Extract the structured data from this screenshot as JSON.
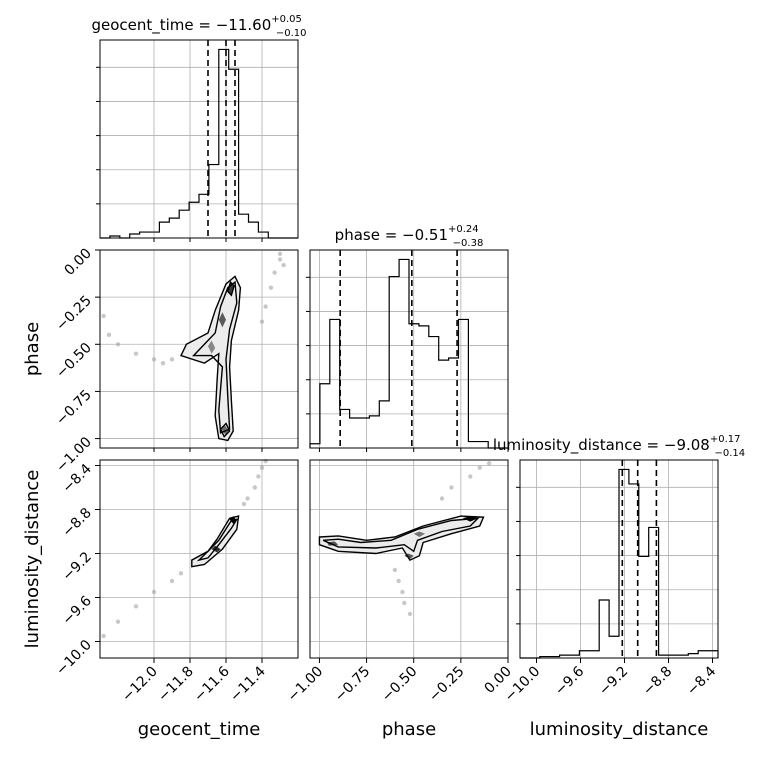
{
  "chart_data": {
    "type": "corner",
    "parameters": [
      "geocent_time",
      "phase",
      "luminosity_distance"
    ],
    "marginals": [
      {
        "param": "geocent_time",
        "title_text": "geocent_time = −11.60",
        "sup": "+0.05",
        "sub": "−0.10",
        "range": [
          -12.3,
          -11.2
        ],
        "quantiles": [
          -11.7,
          -11.6,
          -11.55
        ],
        "bin_edges": [
          -12.3,
          -12.245,
          -12.19,
          -12.135,
          -12.08,
          -12.025,
          -11.97,
          -11.915,
          -11.86,
          -11.805,
          -11.75,
          -11.695,
          -11.64,
          -11.585,
          -11.53,
          -11.475,
          -11.42,
          -11.365,
          -11.31,
          -11.255,
          -11.2
        ],
        "counts": [
          0,
          1,
          0,
          2,
          3,
          3,
          8,
          10,
          14,
          18,
          22,
          37,
          95,
          85,
          12,
          8,
          3,
          0,
          0,
          0
        ]
      },
      {
        "param": "phase",
        "title_text": "phase = −0.51",
        "sup": "+0.24",
        "sub": "−0.38",
        "range": [
          -1.05,
          0.0
        ],
        "quantiles": [
          -0.89,
          -0.51,
          -0.27
        ],
        "bin_edges": [
          -1.05,
          -0.9975,
          -0.945,
          -0.8925,
          -0.84,
          -0.7875,
          -0.735,
          -0.6825,
          -0.63,
          -0.5775,
          -0.525,
          -0.4725,
          -0.42,
          -0.3675,
          -0.315,
          -0.2625,
          -0.21,
          -0.1575,
          -0.105,
          -0.0525,
          0.0
        ],
        "counts": [
          2,
          30,
          60,
          18,
          14,
          14,
          15,
          22,
          80,
          88,
          58,
          57,
          52,
          41,
          42,
          60,
          3,
          3,
          0,
          0
        ]
      },
      {
        "param": "luminosity_distance",
        "title_text": "luminosity_distance = −9.08",
        "sup": "+0.17",
        "sub": "−0.14",
        "range": [
          -10.15,
          -8.35
        ],
        "quantiles": [
          -9.22,
          -9.08,
          -8.91
        ],
        "bin_edges": [
          -10.15,
          -10.06,
          -9.97,
          -9.88,
          -9.79,
          -9.7,
          -9.61,
          -9.52,
          -9.43,
          -9.34,
          -9.25,
          -9.16,
          -9.07,
          -8.98,
          -8.89,
          -8.8,
          -8.71,
          -8.62,
          -8.53,
          -8.44,
          -8.35
        ],
        "counts": [
          0,
          0,
          1,
          1,
          2,
          2,
          5,
          5,
          40,
          15,
          130,
          120,
          70,
          90,
          2,
          2,
          2,
          3,
          5,
          5
        ]
      }
    ],
    "pairs": [
      {
        "x": "geocent_time",
        "y": "phase",
        "xlim": [
          -12.3,
          -11.2
        ],
        "ylim": [
          -1.05,
          0.0
        ],
        "contours": [
          [
            [
              -11.6,
              -0.18
            ],
            [
              -11.55,
              -0.14
            ],
            [
              -11.52,
              -0.2
            ],
            [
              -11.53,
              -0.32
            ],
            [
              -11.57,
              -0.48
            ],
            [
              -11.58,
              -0.62
            ],
            [
              -11.57,
              -0.8
            ],
            [
              -11.56,
              -0.96
            ],
            [
              -11.59,
              -1.01
            ],
            [
              -11.64,
              -1.0
            ],
            [
              -11.66,
              -0.88
            ],
            [
              -11.65,
              -0.7
            ],
            [
              -11.64,
              -0.55
            ],
            [
              -11.72,
              -0.6
            ],
            [
              -11.85,
              -0.56
            ],
            [
              -11.82,
              -0.5
            ],
            [
              -11.7,
              -0.44
            ],
            [
              -11.66,
              -0.32
            ]
          ],
          [
            [
              -11.59,
              -0.2
            ],
            [
              -11.55,
              -0.17
            ],
            [
              -11.54,
              -0.28
            ],
            [
              -11.58,
              -0.42
            ],
            [
              -11.6,
              -0.58
            ],
            [
              -11.59,
              -0.78
            ],
            [
              -11.58,
              -0.95
            ],
            [
              -11.63,
              -0.97
            ],
            [
              -11.64,
              -0.85
            ],
            [
              -11.62,
              -0.62
            ],
            [
              -11.68,
              -0.56
            ],
            [
              -11.78,
              -0.56
            ],
            [
              -11.72,
              -0.5
            ],
            [
              -11.66,
              -0.44
            ],
            [
              -11.63,
              -0.3
            ]
          ],
          [
            [
              -11.575,
              -0.17
            ],
            [
              -11.555,
              -0.19
            ],
            [
              -11.57,
              -0.24
            ],
            [
              -11.59,
              -0.22
            ]
          ],
          [
            [
              -11.6,
              -0.92
            ],
            [
              -11.58,
              -0.96
            ],
            [
              -11.61,
              -0.99
            ],
            [
              -11.63,
              -0.95
            ]
          ]
        ],
        "fills": [
          {
            "shade": "#3a3a3a",
            "pts": [
              [
                -11.575,
                -0.17
              ],
              [
                -11.555,
                -0.19
              ],
              [
                -11.57,
                -0.24
              ],
              [
                -11.59,
                -0.22
              ]
            ]
          },
          {
            "shade": "#5a5a5a",
            "pts": [
              [
                -11.62,
                -0.33
              ],
              [
                -11.6,
                -0.37
              ],
              [
                -11.62,
                -0.41
              ],
              [
                -11.64,
                -0.37
              ]
            ]
          },
          {
            "shade": "#6a6a6a",
            "pts": [
              [
                -11.605,
                -0.93
              ],
              [
                -11.585,
                -0.96
              ],
              [
                -11.605,
                -0.98
              ],
              [
                -11.625,
                -0.95
              ]
            ]
          },
          {
            "shade": "#888888",
            "pts": [
              [
                -11.68,
                -0.48
              ],
              [
                -11.66,
                -0.52
              ],
              [
                -11.68,
                -0.55
              ],
              [
                -11.7,
                -0.51
              ]
            ]
          }
        ],
        "scatter": [
          [
            -11.3,
            -0.05
          ],
          [
            -11.33,
            -0.12
          ],
          [
            -11.35,
            -0.2
          ],
          [
            -11.38,
            -0.3
          ],
          [
            -11.4,
            -0.38
          ],
          [
            -11.3,
            -0.02
          ],
          [
            -11.28,
            -0.08
          ],
          [
            -12.25,
            -0.45
          ],
          [
            -12.2,
            -0.5
          ],
          [
            -12.1,
            -0.55
          ],
          [
            -12.0,
            -0.58
          ],
          [
            -11.95,
            -0.6
          ],
          [
            -12.28,
            -0.35
          ],
          [
            -11.9,
            -0.58
          ]
        ]
      },
      {
        "x": "geocent_time",
        "y": "luminosity_distance",
        "xlim": [
          -12.3,
          -11.2
        ],
        "ylim": [
          -10.15,
          -8.35
        ],
        "contours": [
          [
            [
              -11.58,
              -8.88
            ],
            [
              -11.53,
              -8.86
            ],
            [
              -11.54,
              -8.98
            ],
            [
              -11.62,
              -9.16
            ],
            [
              -11.72,
              -9.3
            ],
            [
              -11.79,
              -9.32
            ],
            [
              -11.79,
              -9.26
            ],
            [
              -11.7,
              -9.18
            ],
            [
              -11.65,
              -9.07
            ]
          ],
          [
            [
              -11.57,
              -8.9
            ],
            [
              -11.54,
              -8.89
            ],
            [
              -11.57,
              -8.97
            ],
            [
              -11.64,
              -9.12
            ],
            [
              -11.7,
              -9.24
            ],
            [
              -11.75,
              -9.26
            ],
            [
              -11.7,
              -9.18
            ],
            [
              -11.64,
              -9.08
            ]
          ]
        ],
        "fills": [
          {
            "shade": "#000000",
            "pts": [
              [
                -11.56,
                -8.86
              ],
              [
                -11.54,
                -8.9
              ],
              [
                -11.56,
                -8.93
              ],
              [
                -11.58,
                -8.89
              ]
            ]
          },
          {
            "shade": "#2a2a2a",
            "pts": [
              [
                -11.66,
                -9.13
              ],
              [
                -11.63,
                -9.16
              ],
              [
                -11.65,
                -9.19
              ],
              [
                -11.68,
                -9.16
              ]
            ]
          }
        ],
        "scatter": [
          [
            -12.28,
            -9.95
          ],
          [
            -12.2,
            -9.82
          ],
          [
            -12.1,
            -9.68
          ],
          [
            -12.0,
            -9.55
          ],
          [
            -11.9,
            -9.45
          ],
          [
            -11.85,
            -9.38
          ],
          [
            -11.48,
            -8.7
          ],
          [
            -11.44,
            -8.6
          ],
          [
            -11.42,
            -8.5
          ],
          [
            -11.4,
            -8.42
          ],
          [
            -11.38,
            -8.36
          ],
          [
            -11.5,
            -8.75
          ]
        ]
      },
      {
        "x": "phase",
        "y": "luminosity_distance",
        "xlim": [
          -1.05,
          0.0
        ],
        "ylim": [
          -10.15,
          -8.35
        ],
        "contours": [
          [
            [
              -1.0,
              -9.05
            ],
            [
              -0.9,
              -9.04
            ],
            [
              -0.75,
              -9.08
            ],
            [
              -0.6,
              -9.05
            ],
            [
              -0.45,
              -8.95
            ],
            [
              -0.25,
              -8.86
            ],
            [
              -0.13,
              -8.87
            ],
            [
              -0.15,
              -8.95
            ],
            [
              -0.3,
              -9.02
            ],
            [
              -0.45,
              -9.1
            ],
            [
              -0.47,
              -9.22
            ],
            [
              -0.52,
              -9.26
            ],
            [
              -0.56,
              -9.15
            ],
            [
              -0.7,
              -9.2
            ],
            [
              -0.9,
              -9.18
            ],
            [
              -1.0,
              -9.12
            ]
          ],
          [
            [
              -0.98,
              -9.08
            ],
            [
              -0.9,
              -9.07
            ],
            [
              -0.78,
              -9.1
            ],
            [
              -0.62,
              -9.08
            ],
            [
              -0.48,
              -8.98
            ],
            [
              -0.3,
              -8.9
            ],
            [
              -0.16,
              -8.88
            ],
            [
              -0.2,
              -8.95
            ],
            [
              -0.35,
              -9.0
            ],
            [
              -0.48,
              -9.08
            ],
            [
              -0.5,
              -9.18
            ],
            [
              -0.55,
              -9.12
            ],
            [
              -0.7,
              -9.15
            ],
            [
              -0.9,
              -9.14
            ]
          ]
        ],
        "fills": [
          {
            "shade": "#000000",
            "pts": [
              [
                -0.2,
                -8.86
              ],
              [
                -0.16,
                -8.88
              ],
              [
                -0.2,
                -8.91
              ],
              [
                -0.24,
                -8.88
              ]
            ]
          },
          {
            "shade": "#555555",
            "pts": [
              [
                -0.96,
                -9.1
              ],
              [
                -0.92,
                -9.09
              ],
              [
                -0.9,
                -9.12
              ],
              [
                -0.95,
                -9.13
              ]
            ]
          },
          {
            "shade": "#555555",
            "pts": [
              [
                -0.53,
                -9.2
              ],
              [
                -0.5,
                -9.22
              ],
              [
                -0.52,
                -9.25
              ],
              [
                -0.55,
                -9.22
              ]
            ]
          },
          {
            "shade": "#777777",
            "pts": [
              [
                -0.47,
                -9.0
              ],
              [
                -0.44,
                -9.02
              ],
              [
                -0.47,
                -9.05
              ],
              [
                -0.5,
                -9.02
              ]
            ]
          }
        ],
        "scatter": [
          [
            -0.6,
            -9.35
          ],
          [
            -0.58,
            -9.45
          ],
          [
            -0.56,
            -9.55
          ],
          [
            -0.55,
            -9.65
          ],
          [
            -0.52,
            -9.75
          ],
          [
            -0.2,
            -8.5
          ],
          [
            -0.15,
            -8.42
          ],
          [
            -0.1,
            -8.38
          ],
          [
            -0.3,
            -8.6
          ],
          [
            -0.35,
            -8.7
          ]
        ]
      }
    ],
    "ticks": {
      "geocent_time": [
        -12.0,
        -11.8,
        -11.6,
        -11.4
      ],
      "phase": [
        -1.0,
        -0.75,
        -0.5,
        -0.25,
        0.0
      ],
      "luminosity_distance": [
        -10.0,
        -9.6,
        -9.2,
        -8.8,
        -8.4
      ]
    },
    "tick_labels": {
      "geocent_time": [
        "−12.0",
        "−11.8",
        "−11.6",
        "−11.4"
      ],
      "phase": [
        "−1.00",
        "−0.75",
        "−0.50",
        "−0.25",
        "0.00"
      ],
      "luminosity_distance": [
        "−10.0",
        "−9.6",
        "−9.2",
        "−8.8",
        "−8.4"
      ]
    },
    "xlabels": [
      "geocent_time",
      "phase",
      "luminosity_distance"
    ],
    "ylabels": [
      "phase",
      "luminosity_distance"
    ],
    "grid": true
  }
}
